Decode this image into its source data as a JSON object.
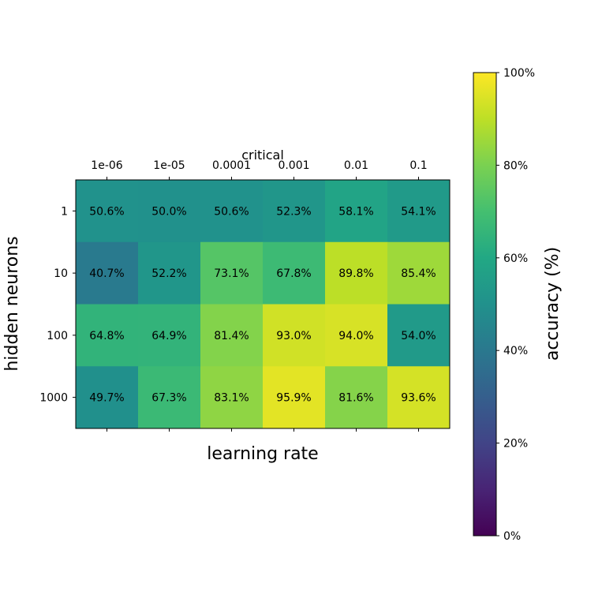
{
  "chart_data": {
    "type": "heatmap",
    "title": "critical",
    "xlabel": "learning rate",
    "ylabel": "hidden neurons",
    "x_categories": [
      "1e-06",
      "1e-05",
      "0.0001",
      "0.001",
      "0.01",
      "0.1"
    ],
    "y_categories": [
      "1",
      "10",
      "100",
      "1000"
    ],
    "values": [
      [
        50.6,
        50.0,
        50.6,
        52.3,
        58.1,
        54.1
      ],
      [
        40.7,
        52.2,
        73.1,
        67.8,
        89.8,
        85.4
      ],
      [
        64.8,
        64.9,
        81.4,
        93.0,
        94.0,
        54.0
      ],
      [
        49.7,
        67.3,
        83.1,
        95.9,
        81.6,
        93.6
      ]
    ],
    "value_format": "%",
    "colormap": "viridis",
    "colorbar": {
      "label": "accuracy (%)",
      "range": [
        0,
        100
      ],
      "ticks": [
        "0%",
        "20%",
        "40%",
        "60%",
        "80%",
        "100%"
      ]
    }
  }
}
